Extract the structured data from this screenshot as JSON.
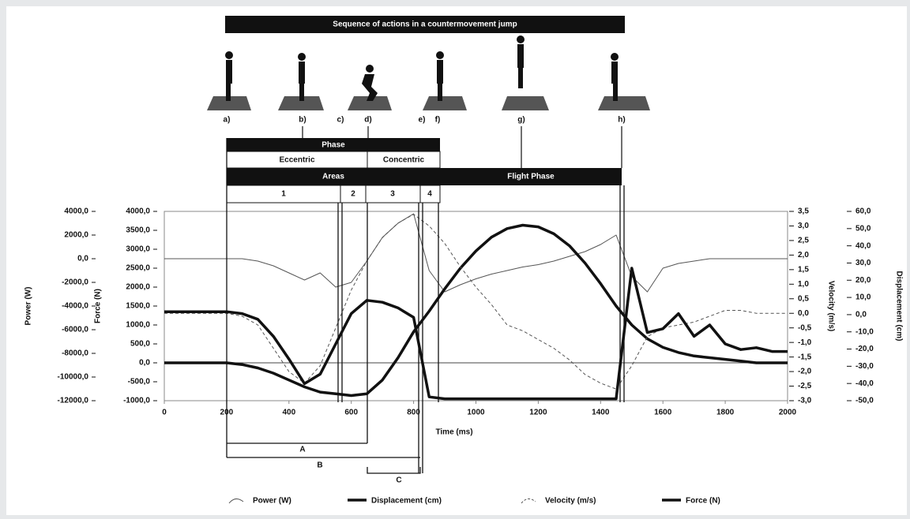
{
  "chart_data": {
    "type": "line",
    "annotations": {
      "sequence_title": "Sequence of actions in a countermovement jump",
      "events": [
        "a)",
        "b)",
        "c)",
        "d)",
        "e)",
        "f)",
        "g)",
        "h)"
      ],
      "phase": "Phase",
      "eccentric": "Eccentric",
      "concentric": "Concentric",
      "areas": "Areas",
      "flight_phase": "Flight Phase",
      "area_numbers": [
        "1",
        "2",
        "3",
        "4"
      ],
      "brackets": [
        "A",
        "B",
        "C"
      ]
    },
    "xlabel": "Time (ms)",
    "xlim": [
      0,
      2000
    ],
    "xticks": [
      0,
      200,
      400,
      600,
      800,
      1000,
      1200,
      1400,
      1600,
      1800,
      2000
    ],
    "ylabel": "Power (W)",
    "ylim": [
      -12000,
      4000
    ],
    "yticks": [
      {
        "value": 4000,
        "label": "4000,0"
      },
      {
        "value": 2000,
        "label": "2000,0"
      },
      {
        "value": 0,
        "label": "0,0"
      },
      {
        "value": -2000,
        "label": "-2000,0"
      },
      {
        "value": -4000,
        "label": "-4000,0"
      },
      {
        "value": -6000,
        "label": "-6000,0"
      },
      {
        "value": -8000,
        "label": "-8000,0"
      },
      {
        "value": -10000,
        "label": "-10000,0"
      },
      {
        "value": -12000,
        "label": "-12000,0"
      }
    ],
    "y2label": "Force (N)",
    "y2lim": [
      -1000,
      4000
    ],
    "y2ticks": [
      {
        "value": 4000,
        "label": "4000,0"
      },
      {
        "value": 3500,
        "label": "3500,0"
      },
      {
        "value": 3000,
        "label": "3000,0"
      },
      {
        "value": 2500,
        "label": "2500,0"
      },
      {
        "value": 2000,
        "label": "2000,0"
      },
      {
        "value": 1500,
        "label": "1500,0"
      },
      {
        "value": 1000,
        "label": "1000,0"
      },
      {
        "value": 500,
        "label": "500,0"
      },
      {
        "value": 0,
        "label": "0,0"
      },
      {
        "value": -500,
        "label": "-500,0"
      },
      {
        "value": -1000,
        "label": "-1000,0"
      }
    ],
    "y3label": "Velocity (m/s)",
    "y3lim": [
      -3,
      3.5
    ],
    "y3ticks": [
      {
        "value": 3.5,
        "label": "3,5"
      },
      {
        "value": 3,
        "label": "3,0"
      },
      {
        "value": 2.5,
        "label": "2,5"
      },
      {
        "value": 2,
        "label": "2,0"
      },
      {
        "value": 1.5,
        "label": "1,5"
      },
      {
        "value": 1,
        "label": "1,0"
      },
      {
        "value": 0.5,
        "label": "0,5"
      },
      {
        "value": 0,
        "label": "0,0"
      },
      {
        "value": -0.5,
        "label": "-0,5"
      },
      {
        "value": -1,
        "label": "-1,0"
      },
      {
        "value": -1.5,
        "label": "-1,5"
      },
      {
        "value": -2,
        "label": "-2,0"
      },
      {
        "value": -2.5,
        "label": "-2,5"
      },
      {
        "value": -3,
        "label": "-3,0"
      }
    ],
    "y4label": "Displacement (cm)",
    "y4lim": [
      -50,
      60
    ],
    "y4ticks": [
      {
        "value": 60,
        "label": "60,0"
      },
      {
        "value": 50,
        "label": "50,0"
      },
      {
        "value": 40,
        "label": "40,0"
      },
      {
        "value": 30,
        "label": "30,0"
      },
      {
        "value": 20,
        "label": "20,0"
      },
      {
        "value": 10,
        "label": "10,0"
      },
      {
        "value": 0,
        "label": "0,0"
      },
      {
        "value": -10,
        "label": "-10,0"
      },
      {
        "value": -20,
        "label": "-20,0"
      },
      {
        "value": -30,
        "label": "-30,0"
      },
      {
        "value": -40,
        "label": "-40,0"
      },
      {
        "value": -50,
        "label": "-50,0"
      }
    ],
    "x": [
      0,
      50,
      100,
      150,
      200,
      250,
      300,
      350,
      400,
      450,
      500,
      550,
      600,
      650,
      700,
      750,
      800,
      850,
      900,
      950,
      1000,
      1050,
      1100,
      1150,
      1200,
      1250,
      1300,
      1350,
      1400,
      1450,
      1500,
      1550,
      1600,
      1650,
      1700,
      1750,
      1800,
      1850,
      1900,
      1950,
      2000
    ],
    "series": [
      {
        "name": "Power (W)",
        "axis": "y",
        "color": "#555555",
        "width": 1,
        "dashed": false,
        "values": [
          0,
          0,
          0,
          0,
          0,
          0,
          -200,
          -600,
          -1200,
          -1800,
          -1200,
          -2400,
          -2000,
          -200,
          1800,
          3000,
          3800,
          -1000,
          -2800,
          -2200,
          -1700,
          -1300,
          -1000,
          -700,
          -500,
          -200,
          200,
          600,
          1200,
          2000,
          -1500,
          -2800,
          -800,
          -400,
          -200,
          0,
          0,
          0,
          0,
          0,
          0
        ]
      },
      {
        "name": "Displacement (cm)",
        "axis": "y4",
        "color": "#111111",
        "width": 3.5,
        "dashed": false,
        "values": [
          -28,
          -28,
          -28,
          -28,
          -28,
          -29,
          -31,
          -34,
          -38,
          -42,
          -45,
          -46,
          -47,
          -46,
          -38,
          -25,
          -10,
          2,
          15,
          27,
          37,
          45,
          50,
          52,
          51,
          47,
          40,
          30,
          18,
          5,
          -6,
          -14,
          -19,
          -22,
          -24,
          -25,
          -26,
          -27,
          -28,
          -28,
          -28
        ]
      },
      {
        "name": "Velocity (m/s)",
        "axis": "y3",
        "color": "#555555",
        "width": 1,
        "dashed": true,
        "values": [
          0,
          0,
          0,
          0,
          0,
          -0.1,
          -0.4,
          -1.2,
          -2,
          -2.4,
          -1.8,
          -0.5,
          0.8,
          1.8,
          2.6,
          3.1,
          3.4,
          3,
          2.4,
          1.6,
          0.9,
          0.3,
          -0.4,
          -0.6,
          -0.9,
          -1.2,
          -1.6,
          -2.1,
          -2.4,
          -2.6,
          -1.8,
          -0.8,
          -0.5,
          -0.4,
          -0.3,
          -0.1,
          0.1,
          0.1,
          0,
          0,
          0
        ]
      },
      {
        "name": "Force (N)",
        "axis": "y2",
        "color": "#111111",
        "width": 3.5,
        "dashed": false,
        "values": [
          1350,
          1350,
          1350,
          1350,
          1350,
          1300,
          1150,
          700,
          100,
          -550,
          -300,
          500,
          1300,
          1650,
          1600,
          1450,
          1200,
          -900,
          -950,
          -950,
          -950,
          -950,
          -950,
          -950,
          -950,
          -950,
          -950,
          -950,
          -950,
          -950,
          2500,
          800,
          900,
          1300,
          700,
          1000,
          500,
          350,
          400,
          300,
          300
        ]
      }
    ]
  }
}
